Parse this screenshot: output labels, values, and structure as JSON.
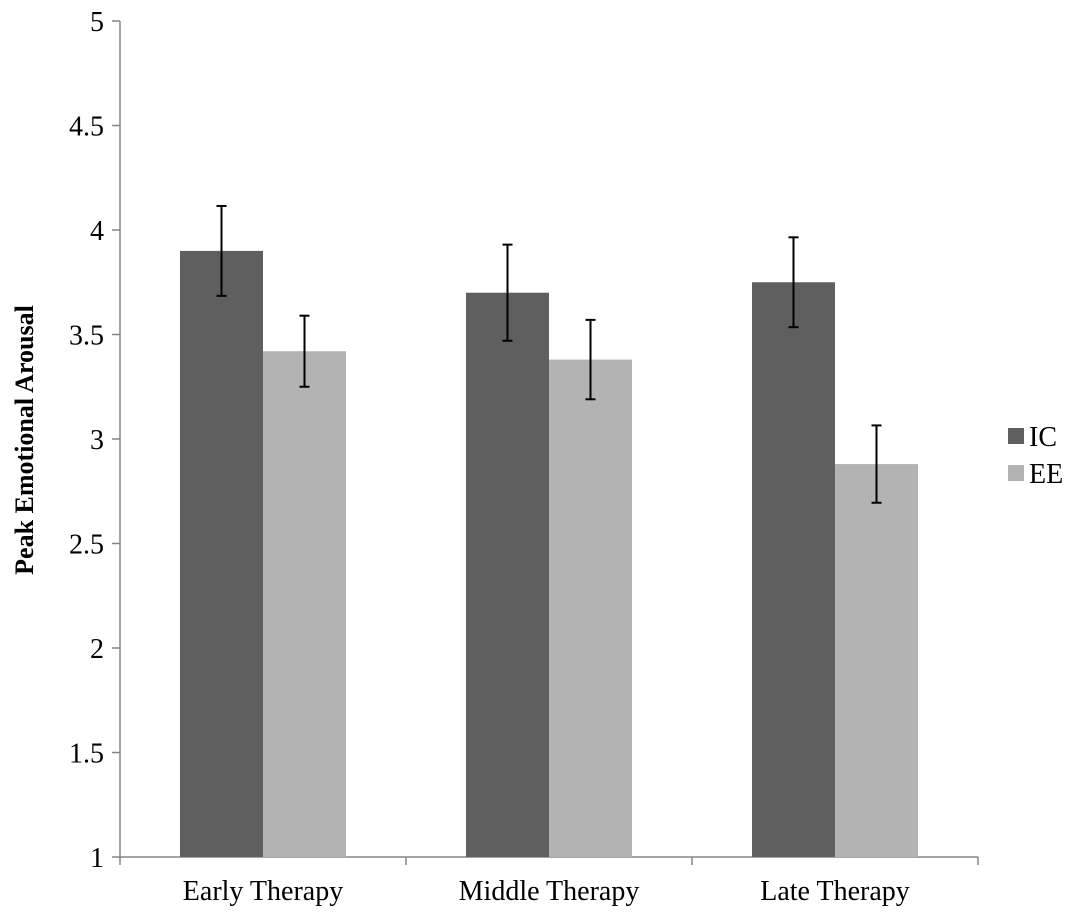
{
  "chart_data": {
    "type": "bar",
    "title": "",
    "xlabel": "",
    "ylabel": "Peak Emotional Arousal",
    "ylim": [
      1,
      5
    ],
    "yticks": [
      "1",
      "1.5",
      "2",
      "2.5",
      "3",
      "3.5",
      "4",
      "4.5",
      "5"
    ],
    "grid": false,
    "legend_position": "right",
    "categories": [
      "Early Therapy",
      "Middle Therapy",
      "Late Therapy"
    ],
    "series": [
      {
        "name": "IC",
        "color": "#5f5f5f",
        "values": [
          3.9,
          3.7,
          3.75
        ],
        "error": [
          0.215,
          0.23,
          0.215
        ]
      },
      {
        "name": "EE",
        "color": "#b3b3b3",
        "values": [
          3.42,
          3.38,
          2.88
        ],
        "error": [
          0.17,
          0.19,
          0.185
        ]
      }
    ]
  }
}
